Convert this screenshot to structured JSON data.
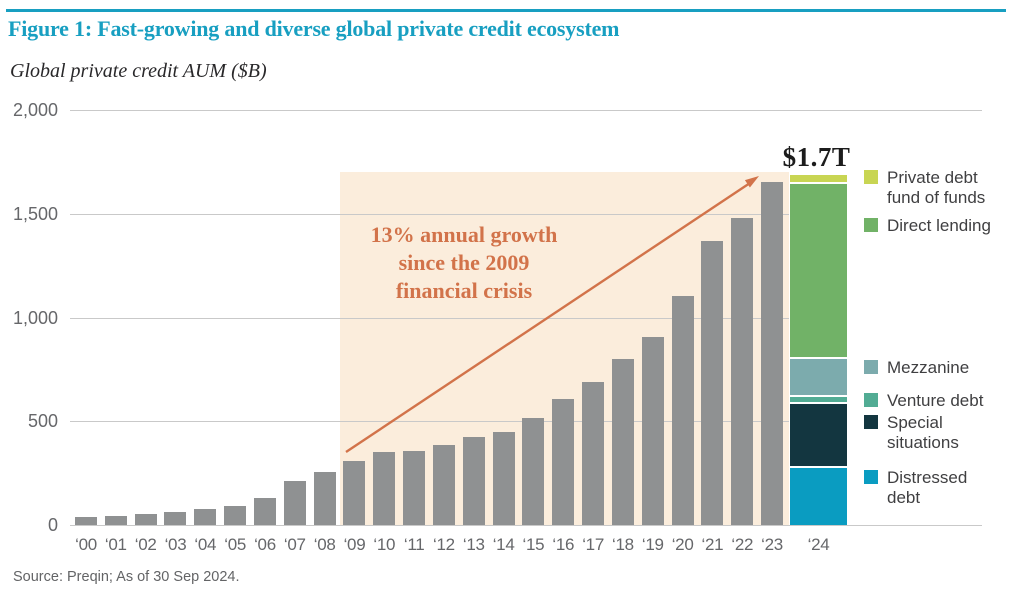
{
  "chart_data": {
    "type": "bar",
    "title": "Figure 1: Fast-growing and diverse global private credit ecosystem",
    "subtitle": "Global private credit AUM ($B)",
    "source": "Source: Preqin; As of 30 Sep 2024.",
    "ylim": [
      0,
      2000
    ],
    "grid": "horizontal",
    "legend_position": "right",
    "yticks": [
      {
        "value": 2000,
        "label": "2,000"
      },
      {
        "value": 1500,
        "label": "1,500"
      },
      {
        "value": 1000,
        "label": "1,000"
      },
      {
        "value": 500,
        "label": "500"
      },
      {
        "value": 0,
        "label": "0"
      }
    ],
    "categories": [
      "‘00",
      "‘01",
      "‘02",
      "‘03",
      "‘04",
      "‘05",
      "‘06",
      "‘07",
      "‘08",
      "‘09",
      "‘10",
      "‘11",
      "‘12",
      "‘13",
      "‘14",
      "‘15",
      "‘16",
      "‘17",
      "‘18",
      "‘19",
      "‘20",
      "‘21",
      "‘22",
      "‘23"
    ],
    "values": [
      40,
      45,
      55,
      65,
      75,
      90,
      130,
      210,
      255,
      307,
      353,
      358,
      385,
      425,
      448,
      517,
      605,
      690,
      800,
      905,
      1105,
      1370,
      1480,
      1655
    ],
    "bar_color": "#8f9192",
    "stacked_bar_2024": {
      "category": "‘24",
      "total_label": "$1.7T",
      "total_value": 1685,
      "segments_top_to_bottom": [
        {
          "name": "Private debt fund of funds",
          "value": 30,
          "color": "#c8d553"
        },
        {
          "name": "Direct lending",
          "value": 845,
          "color": "#71b267"
        },
        {
          "name": "Mezzanine",
          "value": 185,
          "color": "#7cabad"
        },
        {
          "name": "Venture debt",
          "value": 30,
          "color": "#52ac94"
        },
        {
          "name": "Special situations",
          "value": 310,
          "color": "#133640"
        },
        {
          "name": "Distressed debt",
          "value": 285,
          "color": "#0a9cc1"
        }
      ]
    },
    "annotation": {
      "lines": [
        "13% annual growth",
        "since the 2009",
        "financial crisis"
      ],
      "color": "#d2734a",
      "highlight_region": {
        "from_category": "‘09",
        "to_category": "‘23",
        "color": "#fbeddc"
      }
    },
    "colors": {
      "accent_teal": "#189fc1",
      "bar_gray": "#8f9192",
      "grid": "#c9c9c9",
      "axis_text": "#66676a",
      "annotation_orange": "#d2734a",
      "total_label": "#1c1c1c",
      "legend_text": "#3f3f41"
    }
  }
}
